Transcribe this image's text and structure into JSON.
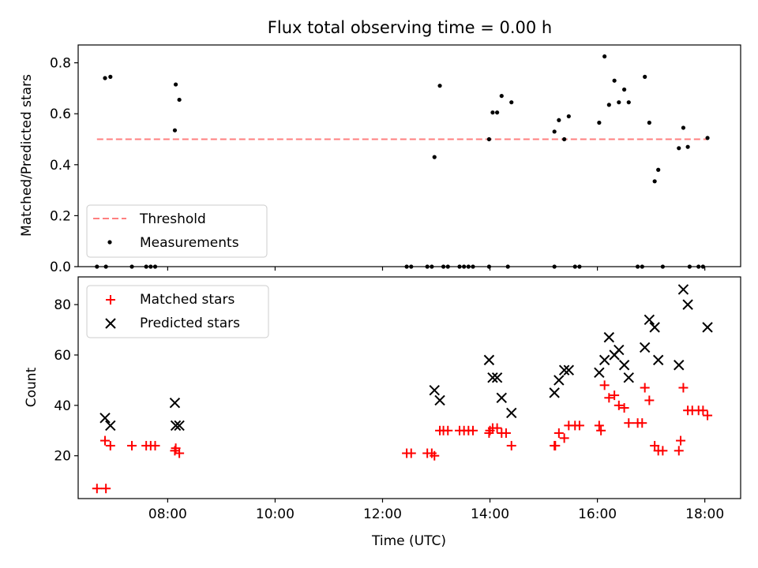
{
  "chart_data": [
    {
      "type": "scatter",
      "title": "Flux total observing time = 0.00 h",
      "ylabel": "Matched/Predicted stars",
      "xlabel": "",
      "xlim": [
        "06:20",
        "18:40"
      ],
      "ylim": [
        0,
        0.87
      ],
      "yticks": [
        0.0,
        0.2,
        0.4,
        0.6,
        0.8
      ],
      "ytick_labels": [
        "0.0",
        "0.2",
        "0.4",
        "0.6",
        "0.8"
      ],
      "xticks": [
        "08:00",
        "10:00",
        "12:00",
        "14:00",
        "16:00",
        "18:00"
      ],
      "xtick_labels_shown": false,
      "legend": {
        "placement": "lower-left",
        "entries": [
          "Threshold",
          "Measurements"
        ]
      },
      "threshold": {
        "name": "Threshold",
        "y": 0.5,
        "x_start": "06:41",
        "x_end": "18:03",
        "color": "#ff7f7f",
        "style": "dashed"
      },
      "series": [
        {
          "name": "Measurements",
          "color": "#000000",
          "marker": "dot",
          "points": [
            [
              "06:50",
              0.74
            ],
            [
              "06:56",
              0.745
            ],
            [
              "08:08",
              0.535
            ],
            [
              "08:09",
              0.715
            ],
            [
              "08:13",
              0.655
            ],
            [
              "12:58",
              0.43
            ],
            [
              "13:04",
              0.71
            ],
            [
              "13:59",
              0.5
            ],
            [
              "14:03",
              0.605
            ],
            [
              "14:08",
              0.605
            ],
            [
              "14:13",
              0.67
            ],
            [
              "14:24",
              0.645
            ],
            [
              "15:12",
              0.53
            ],
            [
              "15:17",
              0.575
            ],
            [
              "15:23",
              0.5
            ],
            [
              "15:28",
              0.59
            ],
            [
              "16:02",
              0.565
            ],
            [
              "16:08",
              0.825
            ],
            [
              "16:13",
              0.635
            ],
            [
              "16:19",
              0.73
            ],
            [
              "16:24",
              0.645
            ],
            [
              "16:30",
              0.695
            ],
            [
              "16:35",
              0.645
            ],
            [
              "16:53",
              0.745
            ],
            [
              "16:58",
              0.565
            ],
            [
              "17:04",
              0.335
            ],
            [
              "17:08",
              0.38
            ],
            [
              "17:31",
              0.465
            ],
            [
              "17:36",
              0.545
            ],
            [
              "17:41",
              0.47
            ],
            [
              "18:03",
              0.505
            ],
            [
              "06:41",
              0
            ],
            [
              "06:51",
              0
            ],
            [
              "07:20",
              0
            ],
            [
              "07:36",
              0
            ],
            [
              "07:41",
              0
            ],
            [
              "07:46",
              0
            ],
            [
              "12:27",
              0
            ],
            [
              "12:32",
              0
            ],
            [
              "12:50",
              0
            ],
            [
              "12:55",
              0
            ],
            [
              "13:08",
              0
            ],
            [
              "13:13",
              0
            ],
            [
              "13:26",
              0
            ],
            [
              "13:31",
              0
            ],
            [
              "13:36",
              0
            ],
            [
              "13:41",
              0
            ],
            [
              "13:59",
              0
            ],
            [
              "14:20",
              0
            ],
            [
              "15:12",
              0
            ],
            [
              "15:35",
              0
            ],
            [
              "15:40",
              0
            ],
            [
              "16:45",
              0
            ],
            [
              "16:50",
              0
            ],
            [
              "17:13",
              0
            ],
            [
              "17:43",
              0
            ],
            [
              "17:53",
              0
            ],
            [
              "17:58",
              0
            ]
          ]
        }
      ]
    },
    {
      "type": "scatter",
      "title": "",
      "ylabel": "Count",
      "xlabel": "Time (UTC)",
      "xlim": [
        "06:20",
        "18:40"
      ],
      "ylim": [
        3,
        91
      ],
      "yticks": [
        20,
        40,
        60,
        80
      ],
      "ytick_labels": [
        "20",
        "40",
        "60",
        "80"
      ],
      "xticks": [
        "08:00",
        "10:00",
        "12:00",
        "14:00",
        "16:00",
        "18:00"
      ],
      "xtick_labels": [
        "08:00",
        "10:00",
        "12:00",
        "14:00",
        "16:00",
        "18:00"
      ],
      "legend": {
        "placement": "top-left",
        "entries": [
          "Matched stars",
          "Predicted stars"
        ]
      },
      "series": [
        {
          "name": "Matched stars",
          "color": "#ff0000",
          "marker": "plus",
          "points": [
            [
              "06:41",
              7
            ],
            [
              "06:51",
              7
            ],
            [
              "06:50",
              26
            ],
            [
              "06:56",
              24
            ],
            [
              "07:20",
              24
            ],
            [
              "07:36",
              24
            ],
            [
              "07:41",
              24
            ],
            [
              "07:46",
              24
            ],
            [
              "08:08",
              22
            ],
            [
              "08:09",
              23
            ],
            [
              "08:13",
              21
            ],
            [
              "12:27",
              21
            ],
            [
              "12:32",
              21
            ],
            [
              "12:50",
              21
            ],
            [
              "12:55",
              21
            ],
            [
              "12:58",
              20
            ],
            [
              "13:04",
              30
            ],
            [
              "13:08",
              30
            ],
            [
              "13:13",
              30
            ],
            [
              "13:26",
              30
            ],
            [
              "13:31",
              30
            ],
            [
              "13:36",
              30
            ],
            [
              "13:41",
              30
            ],
            [
              "13:59",
              29
            ],
            [
              "14:00",
              30
            ],
            [
              "14:03",
              31
            ],
            [
              "14:08",
              31
            ],
            [
              "14:13",
              29
            ],
            [
              "14:18",
              29
            ],
            [
              "14:24",
              24
            ],
            [
              "15:12",
              24
            ],
            [
              "15:13",
              24
            ],
            [
              "15:17",
              29
            ],
            [
              "15:23",
              27
            ],
            [
              "15:28",
              32
            ],
            [
              "15:35",
              32
            ],
            [
              "15:40",
              32
            ],
            [
              "16:02",
              32
            ],
            [
              "16:04",
              30
            ],
            [
              "16:08",
              48
            ],
            [
              "16:13",
              43
            ],
            [
              "16:19",
              44
            ],
            [
              "16:24",
              40
            ],
            [
              "16:30",
              39
            ],
            [
              "16:35",
              33
            ],
            [
              "16:45",
              33
            ],
            [
              "16:50",
              33
            ],
            [
              "16:53",
              47
            ],
            [
              "16:58",
              42
            ],
            [
              "17:04",
              24
            ],
            [
              "17:08",
              22
            ],
            [
              "17:13",
              22
            ],
            [
              "17:31",
              22
            ],
            [
              "17:33",
              26
            ],
            [
              "17:36",
              47
            ],
            [
              "17:41",
              38
            ],
            [
              "17:46",
              38
            ],
            [
              "17:53",
              38
            ],
            [
              "17:58",
              38
            ],
            [
              "18:03",
              36
            ]
          ]
        },
        {
          "name": "Predicted stars",
          "color": "#000000",
          "marker": "cross",
          "points": [
            [
              "06:50",
              35
            ],
            [
              "06:56",
              32
            ],
            [
              "08:08",
              41
            ],
            [
              "08:09",
              32
            ],
            [
              "08:13",
              32
            ],
            [
              "12:58",
              46
            ],
            [
              "13:04",
              42
            ],
            [
              "13:59",
              58
            ],
            [
              "14:03",
              51
            ],
            [
              "14:08",
              51
            ],
            [
              "14:13",
              43
            ],
            [
              "14:24",
              37
            ],
            [
              "15:12",
              45
            ],
            [
              "15:17",
              50
            ],
            [
              "15:23",
              54
            ],
            [
              "15:28",
              54
            ],
            [
              "16:02",
              53
            ],
            [
              "16:08",
              58
            ],
            [
              "16:13",
              67
            ],
            [
              "16:19",
              60
            ],
            [
              "16:24",
              62
            ],
            [
              "16:30",
              56
            ],
            [
              "16:35",
              51
            ],
            [
              "16:53",
              63
            ],
            [
              "16:58",
              74
            ],
            [
              "17:04",
              71
            ],
            [
              "17:08",
              58
            ],
            [
              "17:31",
              56
            ],
            [
              "17:36",
              86
            ],
            [
              "17:41",
              80
            ],
            [
              "18:03",
              71
            ]
          ]
        }
      ]
    }
  ]
}
